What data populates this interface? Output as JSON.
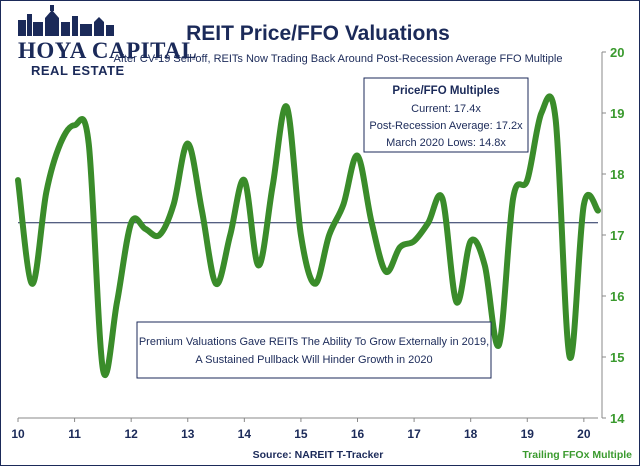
{
  "logo": {
    "line1": "HOYA CAPITAL",
    "line2": "REAL ESTATE"
  },
  "chart_data": {
    "type": "line",
    "title": "REIT Price/FFO Valuations",
    "subtitle": "After CV-19 Sell-off, REITs Now Trading Back Around Post-Recession Average FFO Multiple",
    "x_ticks": [
      "10",
      "11",
      "12",
      "13",
      "14",
      "15",
      "16",
      "17",
      "18",
      "19",
      "20"
    ],
    "y_ticks": [
      "14",
      "15",
      "16",
      "17",
      "18",
      "19",
      "20"
    ],
    "ylim": [
      14,
      20
    ],
    "xlim": [
      2010,
      2020.25
    ],
    "series": [
      {
        "name": "Trailing FFOx Multiple",
        "color": "#3a8c2a",
        "x": [
          2010.0,
          2010.25,
          2010.5,
          2010.75,
          2011.0,
          2011.25,
          2011.5,
          2011.75,
          2012.0,
          2012.25,
          2012.5,
          2012.75,
          2013.0,
          2013.25,
          2013.5,
          2013.75,
          2014.0,
          2014.25,
          2014.5,
          2014.75,
          2015.0,
          2015.25,
          2015.5,
          2015.75,
          2016.0,
          2016.25,
          2016.5,
          2016.75,
          2017.0,
          2017.25,
          2017.5,
          2017.75,
          2018.0,
          2018.25,
          2018.5,
          2018.75,
          2019.0,
          2019.25,
          2019.5,
          2019.75,
          2020.0,
          2020.25
        ],
        "values": [
          17.9,
          16.2,
          17.7,
          18.5,
          18.8,
          18.5,
          14.8,
          15.9,
          17.2,
          17.1,
          17.0,
          17.5,
          18.5,
          17.4,
          16.2,
          17.0,
          17.9,
          16.5,
          17.8,
          19.1,
          17.0,
          16.2,
          17.0,
          17.5,
          18.3,
          17.2,
          16.4,
          16.8,
          16.9,
          17.2,
          17.6,
          15.9,
          16.9,
          16.5,
          15.2,
          17.6,
          17.9,
          19.0,
          18.9,
          15.0,
          17.5,
          17.4
        ]
      }
    ],
    "reference_line": {
      "value": 17.2,
      "label": "Post-Recession Average"
    },
    "annotations": {
      "info_box": {
        "title": "Price/FFO Multiples",
        "lines": [
          "Current: 17.4x",
          "Post-Recession Average: 17.2x",
          "March 2020 Lows: 14.8x"
        ]
      },
      "note_box": {
        "lines": [
          "Premium Valuations Gave REITs The Ability To Grow Externally in 2019,",
          "A Sustained Pullback Will Hinder Growth in 2020"
        ]
      }
    },
    "source": "Source: NAREIT T-Tracker",
    "series_label": "Trailing FFOx Multiple",
    "grid": false,
    "legend_placement": "bottom-right"
  }
}
